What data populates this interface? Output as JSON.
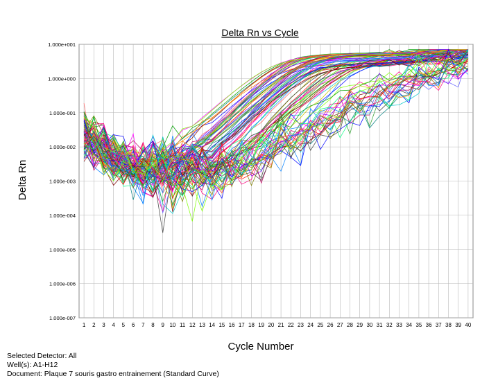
{
  "chart_data": {
    "type": "line",
    "title": "Delta Rn vs Cycle",
    "xlabel": "Cycle Number",
    "ylabel": "Delta Rn",
    "yscale": "log",
    "ylim": [
      1e-07,
      10
    ],
    "xlim": [
      1,
      40
    ],
    "x": [
      1,
      2,
      3,
      4,
      5,
      6,
      7,
      8,
      9,
      10,
      11,
      12,
      13,
      14,
      15,
      16,
      17,
      18,
      19,
      20,
      21,
      22,
      23,
      24,
      25,
      26,
      27,
      28,
      29,
      30,
      31,
      32,
      33,
      34,
      35,
      36,
      37,
      38,
      39,
      40
    ],
    "y_tick_labels": [
      "1.000e+001",
      "1.000e+000",
      "1.000e-001",
      "1.000e-002",
      "1.000e-003",
      "1.000e-004",
      "1.000e-005",
      "1.000e-006",
      "1.000e-007"
    ],
    "y_tick_values": [
      10,
      1,
      0.1,
      0.01,
      0.001,
      0.0001,
      1e-05,
      1e-06,
      1e-07
    ],
    "grid": true,
    "legend": "none",
    "series_count": 96,
    "plateau_range": [
      2.0,
      5.5
    ],
    "background_range": [
      0.0003,
      0.04
    ],
    "threshold_cycle_range": [
      20,
      37
    ]
  },
  "footer": {
    "detector": "Selected Detector: All",
    "wells": "Well(s): A1-H12",
    "document": "Document: Plaque 7 souris gastro entrainement (Standard Curve)"
  }
}
